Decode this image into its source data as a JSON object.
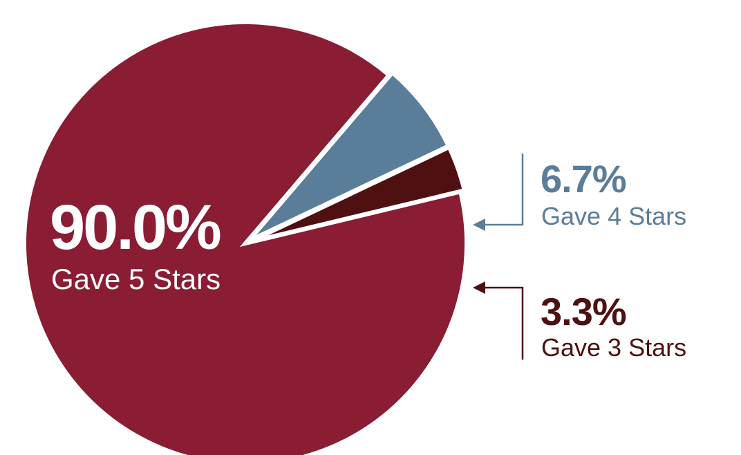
{
  "chart_data": {
    "type": "pie",
    "title": "",
    "slices": [
      {
        "name": "Gave 5 Stars",
        "percent_label": "90.0%",
        "value": 90.0,
        "color": "#8a1c34"
      },
      {
        "name": "Gave 4 Stars",
        "percent_label": "6.7%",
        "value": 6.7,
        "color": "#5a7d9a"
      },
      {
        "name": "Gave 3 Stars",
        "percent_label": "3.3%",
        "value": 3.3,
        "color": "#4e1010"
      }
    ],
    "start_angle_deg": 346.5,
    "direction": "clockwise",
    "exploded_slices": [
      "Gave 4 Stars",
      "Gave 3 Stars"
    ],
    "legend": "none",
    "label_placement": {
      "Gave 5 Stars": "inside",
      "Gave 4 Stars": "outside-right-with-arrow",
      "Gave 3 Stars": "outside-right-with-arrow"
    }
  }
}
